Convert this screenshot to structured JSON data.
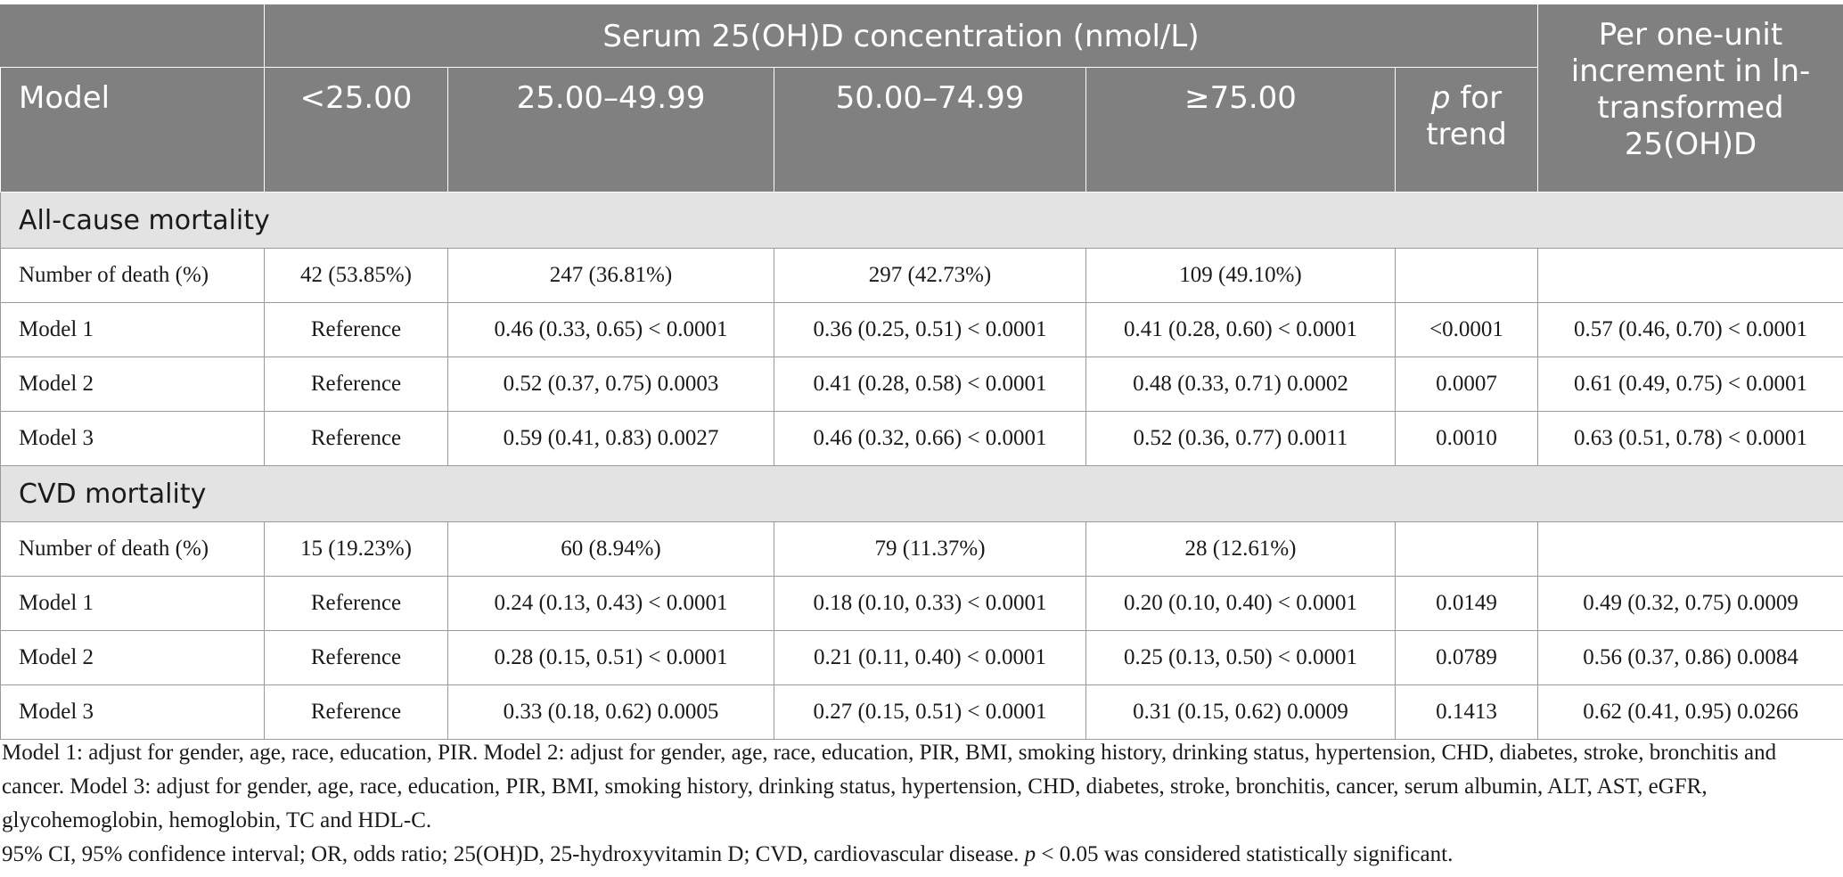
{
  "header": {
    "model": "Model",
    "group_title": "Serum 25(OH)D concentration (nmol/L)",
    "cols": [
      "<25.00",
      "25.00–49.99",
      "50.00–74.99",
      "≥75.00"
    ],
    "p_for_trend_p": "p",
    "p_for_trend_rest": " for trend",
    "per_unit": "Per one-unit increment in ln-transformed 25(OH)D"
  },
  "sections": [
    {
      "title": "All-cause mortality",
      "rows": [
        {
          "label": "Number of death (%)",
          "cells": [
            "42 (53.85%)",
            "247 (36.81%)",
            "297 (42.73%)",
            "109 (49.10%)",
            "",
            ""
          ]
        },
        {
          "label": "Model 1",
          "cells": [
            "Reference",
            "0.46 (0.33, 0.65) < 0.0001",
            "0.36 (0.25, 0.51) < 0.0001",
            "0.41 (0.28, 0.60) < 0.0001",
            "<0.0001",
            "0.57 (0.46, 0.70) < 0.0001"
          ]
        },
        {
          "label": "Model 2",
          "cells": [
            "Reference",
            "0.52 (0.37, 0.75) 0.0003",
            "0.41 (0.28, 0.58) < 0.0001",
            "0.48 (0.33, 0.71) 0.0002",
            "0.0007",
            "0.61 (0.49, 0.75) < 0.0001"
          ]
        },
        {
          "label": "Model 3",
          "cells": [
            "Reference",
            "0.59 (0.41, 0.83) 0.0027",
            "0.46 (0.32, 0.66) < 0.0001",
            "0.52 (0.36, 0.77) 0.0011",
            "0.0010",
            "0.63 (0.51, 0.78) < 0.0001"
          ]
        }
      ]
    },
    {
      "title": "CVD mortality",
      "rows": [
        {
          "label": "Number of death (%)",
          "cells": [
            "15 (19.23%)",
            "60 (8.94%)",
            "79 (11.37%)",
            "28 (12.61%)",
            "",
            ""
          ]
        },
        {
          "label": "Model 1",
          "cells": [
            "Reference",
            "0.24 (0.13, 0.43) < 0.0001",
            "0.18 (0.10, 0.33) < 0.0001",
            "0.20 (0.10, 0.40) < 0.0001",
            "0.0149",
            "0.49 (0.32, 0.75) 0.0009"
          ]
        },
        {
          "label": "Model 2",
          "cells": [
            "Reference",
            "0.28 (0.15, 0.51) < 0.0001",
            "0.21 (0.11, 0.40) < 0.0001",
            "0.25 (0.13, 0.50) < 0.0001",
            "0.0789",
            "0.56 (0.37, 0.86) 0.0084"
          ]
        },
        {
          "label": "Model 3",
          "cells": [
            "Reference",
            "0.33 (0.18, 0.62) 0.0005",
            "0.27 (0.15, 0.51) < 0.0001",
            "0.31 (0.15, 0.62) 0.0009",
            "0.1413",
            "0.62 (0.41, 0.95) 0.0266"
          ]
        }
      ]
    }
  ],
  "footnotes": {
    "models": "Model 1: adjust for gender, age, race, education, PIR. Model 2: adjust for gender, age, race, education, PIR, BMI, smoking history, drinking status, hypertension, CHD, diabetes, stroke, bronchitis and cancer. Model 3: adjust for gender, age, race, education, PIR, BMI, smoking history, drinking status, hypertension, CHD, diabetes, stroke, bronchitis, cancer, serum albumin, ALT, AST, eGFR, glycohemoglobin, hemoglobin, TC and HDL-C.",
    "abbrev": "95% CI, 95% confidence interval; OR, odds ratio; 25(OH)D, 25-hydroxyvitamin D; CVD, cardiovascular disease. ",
    "abbrev_p": "p",
    "abbrev_end": " < 0.05 was considered statistically significant."
  },
  "colors": {
    "header_bg": "#808080",
    "section_bg": "#e3e3e3",
    "text": "#1a1a1a"
  }
}
